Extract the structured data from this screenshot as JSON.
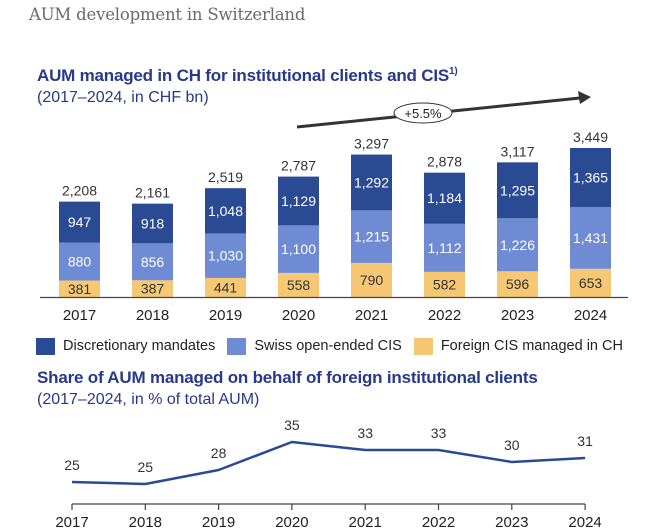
{
  "page_title": "AUM development in Switzerland",
  "colors": {
    "discretionary": "#2b4a94",
    "swiss_cis": "#6f8bd4",
    "foreign_cis": "#f7c873",
    "line": "#2b4a94",
    "title": "#27398a"
  },
  "chart_data": [
    {
      "type": "bar",
      "stacked": true,
      "title": "AUM managed in CH for institutional clients and CIS",
      "title_footnote": "1)",
      "subtitle": "(2017–2024, in CHF bn)",
      "categories": [
        "2017",
        "2018",
        "2019",
        "2020",
        "2021",
        "2022",
        "2023",
        "2024"
      ],
      "series": [
        {
          "name": "Foreign CIS managed in CH",
          "values": [
            381,
            387,
            441,
            558,
            790,
            582,
            596,
            653
          ]
        },
        {
          "name": "Swiss open-ended CIS",
          "values": [
            880,
            856,
            1030,
            1100,
            1215,
            1112,
            1226,
            1431
          ]
        },
        {
          "name": "Discretionary mandates",
          "values": [
            947,
            918,
            1048,
            1129,
            1292,
            1184,
            1295,
            1365
          ]
        }
      ],
      "value_labels": {
        "Foreign CIS managed in CH": [
          "381",
          "387",
          "441",
          "558",
          "790",
          "582",
          "596",
          "653"
        ],
        "Swiss open-ended CIS": [
          "880",
          "856",
          "1,030",
          "1,100",
          "1,215",
          "1,112",
          "1,226",
          "1,431"
        ],
        "Discretionary mandates": [
          "947",
          "918",
          "1,048",
          "1,129",
          "1,292",
          "1,184",
          "1,295",
          "1,365"
        ]
      },
      "totals": [
        "2,208",
        "2,161",
        "2,519",
        "2,787",
        "3,297",
        "2,878",
        "3,117",
        "3,449"
      ],
      "ylim": [
        0,
        3500
      ],
      "grid": false,
      "annotation": {
        "text": "+5.5%",
        "type": "growth-arrow"
      },
      "legend": {
        "placement": "bottom",
        "entries": [
          "Discretionary mandates",
          "Swiss open-ended CIS",
          "Foreign CIS managed in CH"
        ]
      }
    },
    {
      "type": "line",
      "title": "Share of AUM managed on behalf of foreign institutional clients",
      "subtitle": "(2017–2024, in % of total AUM)",
      "x": [
        "2017",
        "2018",
        "2019",
        "2020",
        "2021",
        "2022",
        "2023",
        "2024"
      ],
      "series": [
        {
          "name": "Share of foreign institutional clients",
          "values": [
            25,
            24.5,
            28,
            35,
            33,
            33,
            30,
            31
          ]
        }
      ],
      "labels": [
        "25",
        "25",
        "28",
        "35",
        "33",
        "33",
        "30",
        "31"
      ],
      "ylim": [
        15,
        40
      ],
      "grid": false
    }
  ]
}
